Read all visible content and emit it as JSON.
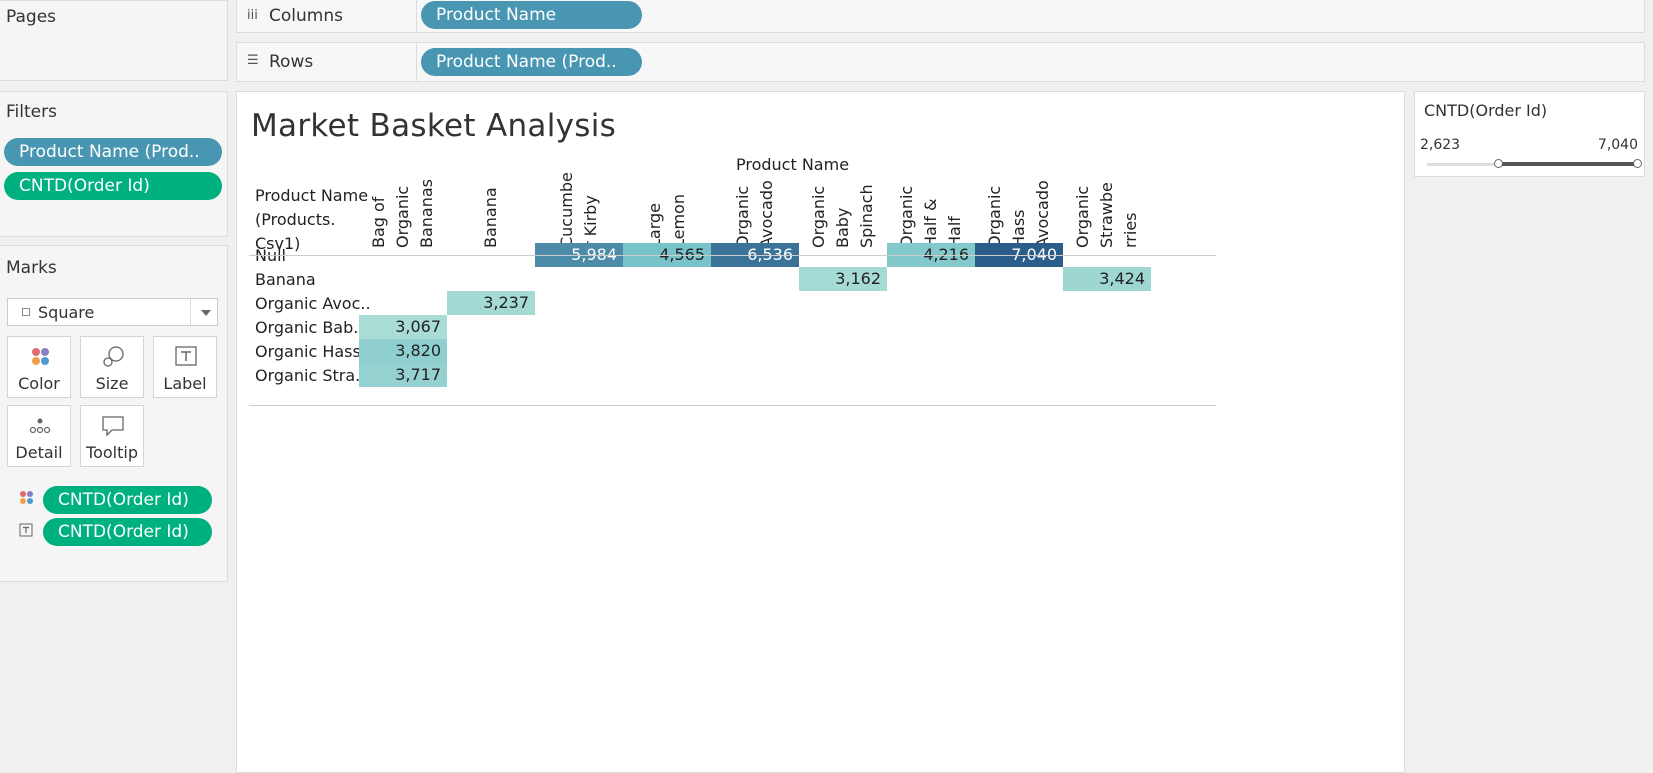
{
  "pages": {
    "title": "Pages"
  },
  "columns_shelf": {
    "label": "Columns",
    "pill": "Product Name"
  },
  "rows_shelf": {
    "label": "Rows",
    "pill": "Product Name (Prod.."
  },
  "filters": {
    "title": "Filters",
    "items": [
      "Product Name (Prod..",
      "CNTD(Order Id)"
    ]
  },
  "marks": {
    "title": "Marks",
    "type": "Square",
    "cards": [
      "Color",
      "Size",
      "Label",
      "Detail",
      "Tooltip"
    ],
    "fields": [
      "CNTD(Order Id)",
      "CNTD(Order Id)"
    ]
  },
  "legend": {
    "title": "CNTD(Order Id)",
    "min": "2,623",
    "max": "7,040"
  },
  "view": {
    "title": "Market Basket Analysis",
    "col_header_title": "Product Name",
    "row_header_title": [
      "Product Name",
      "(Products.",
      "Csv1)"
    ]
  },
  "chart_data": {
    "type": "heatmap",
    "title": "Market Basket Analysis",
    "x_field": "Product Name",
    "y_field": "Product Name (Products. Csv1)",
    "columns": [
      [
        "Bag of",
        "Organic",
        "Bananas"
      ],
      [
        "Banana"
      ],
      [
        "Cucumbe",
        "r Kirby"
      ],
      [
        "Large",
        "Lemon"
      ],
      [
        "Organic",
        "Avocado"
      ],
      [
        "Organic",
        "Baby",
        "Spinach"
      ],
      [
        "Organic",
        "Half &",
        "Half"
      ],
      [
        "Organic",
        "Hass",
        "Avocado"
      ],
      [
        "Organic",
        "Strawbe",
        "rries"
      ]
    ],
    "rows": [
      "Null",
      "Banana",
      "Organic Avoc..",
      "Organic Bab..",
      "Organic Hass..",
      "Organic Stra.."
    ],
    "cells": [
      {
        "row": 0,
        "col": 2,
        "value": 5984,
        "label": "5,984"
      },
      {
        "row": 0,
        "col": 3,
        "value": 4565,
        "label": "4,565"
      },
      {
        "row": 0,
        "col": 4,
        "value": 6536,
        "label": "6,536"
      },
      {
        "row": 0,
        "col": 6,
        "value": 4216,
        "label": "4,216"
      },
      {
        "row": 0,
        "col": 7,
        "value": 7040,
        "label": "7,040"
      },
      {
        "row": 1,
        "col": 5,
        "value": 3162,
        "label": "3,162"
      },
      {
        "row": 1,
        "col": 8,
        "value": 3424,
        "label": "3,424"
      },
      {
        "row": 2,
        "col": 1,
        "value": 3237,
        "label": "3,237"
      },
      {
        "row": 3,
        "col": 0,
        "value": 3067,
        "label": "3,067"
      },
      {
        "row": 4,
        "col": 0,
        "value": 3820,
        "label": "3,820"
      },
      {
        "row": 5,
        "col": 0,
        "value": 3717,
        "label": "3,717"
      }
    ],
    "color_range": {
      "min": 2623,
      "max": 7040,
      "low_color": "#b8e3d8",
      "high_color": "#2b5d8a"
    }
  }
}
